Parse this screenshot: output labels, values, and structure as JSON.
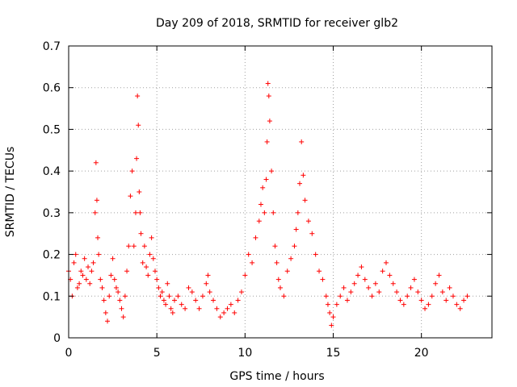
{
  "chart_data": {
    "type": "scatter",
    "title": "Day 209 of 2018, SRMTID for receiver glb2",
    "xlabel": "GPS time / hours",
    "ylabel": "SRMTID / TECUs",
    "xlim": [
      0,
      24
    ],
    "ylim": [
      0,
      0.7
    ],
    "xticks": [
      0,
      5,
      10,
      15,
      20
    ],
    "yticks": [
      0,
      0.1,
      0.2,
      0.3,
      0.4,
      0.5,
      0.6,
      0.7
    ],
    "ytick_labels": [
      "0",
      "0.1",
      "0.2",
      "0.3",
      "0.4",
      "0.5",
      "0.6",
      "0.7"
    ],
    "grid": true,
    "marker": "+",
    "color": "#ff0000",
    "series": [
      {
        "name": "SRMTID",
        "x": [
          0.0,
          0.1,
          0.2,
          0.3,
          0.4,
          0.5,
          0.6,
          0.7,
          0.8,
          0.9,
          1.0,
          1.1,
          1.2,
          1.3,
          1.4,
          1.5,
          1.55,
          1.6,
          1.65,
          1.7,
          1.8,
          1.9,
          2.0,
          2.1,
          2.2,
          2.3,
          2.4,
          2.5,
          2.6,
          2.7,
          2.8,
          2.9,
          3.0,
          3.1,
          3.2,
          3.3,
          3.4,
          3.5,
          3.6,
          3.7,
          3.8,
          3.85,
          3.9,
          3.95,
          4.0,
          4.05,
          4.1,
          4.2,
          4.3,
          4.4,
          4.5,
          4.6,
          4.7,
          4.8,
          4.9,
          5.0,
          5.1,
          5.2,
          5.3,
          5.4,
          5.5,
          5.6,
          5.7,
          5.8,
          5.9,
          6.0,
          6.2,
          6.4,
          6.6,
          6.8,
          7.0,
          7.2,
          7.4,
          7.6,
          7.8,
          7.9,
          8.0,
          8.2,
          8.4,
          8.6,
          8.8,
          9.0,
          9.2,
          9.4,
          9.6,
          9.8,
          10.0,
          10.2,
          10.4,
          10.6,
          10.8,
          10.9,
          11.0,
          11.1,
          11.2,
          11.25,
          11.3,
          11.35,
          11.4,
          11.5,
          11.6,
          11.7,
          11.8,
          11.9,
          12.0,
          12.2,
          12.4,
          12.6,
          12.8,
          12.9,
          13.0,
          13.1,
          13.2,
          13.3,
          13.4,
          13.6,
          13.8,
          14.0,
          14.2,
          14.4,
          14.6,
          14.7,
          14.8,
          14.9,
          15.0,
          15.2,
          15.4,
          15.6,
          15.8,
          16.0,
          16.2,
          16.4,
          16.6,
          16.8,
          17.0,
          17.2,
          17.4,
          17.6,
          17.8,
          18.0,
          18.2,
          18.4,
          18.6,
          18.8,
          19.0,
          19.2,
          19.4,
          19.6,
          19.8,
          20.0,
          20.2,
          20.4,
          20.6,
          20.8,
          21.0,
          21.2,
          21.4,
          21.6,
          21.8,
          22.0,
          22.2,
          22.4,
          22.6
        ],
        "y": [
          0.16,
          0.14,
          0.1,
          0.18,
          0.2,
          0.12,
          0.13,
          0.16,
          0.15,
          0.19,
          0.14,
          0.17,
          0.13,
          0.16,
          0.18,
          0.3,
          0.42,
          0.33,
          0.24,
          0.2,
          0.14,
          0.12,
          0.09,
          0.06,
          0.04,
          0.1,
          0.15,
          0.19,
          0.14,
          0.12,
          0.11,
          0.09,
          0.07,
          0.05,
          0.1,
          0.16,
          0.22,
          0.34,
          0.4,
          0.22,
          0.3,
          0.43,
          0.58,
          0.51,
          0.35,
          0.3,
          0.25,
          0.18,
          0.22,
          0.17,
          0.15,
          0.2,
          0.24,
          0.19,
          0.16,
          0.14,
          0.12,
          0.1,
          0.11,
          0.09,
          0.08,
          0.13,
          0.1,
          0.07,
          0.06,
          0.09,
          0.1,
          0.08,
          0.07,
          0.12,
          0.11,
          0.09,
          0.07,
          0.1,
          0.13,
          0.15,
          0.11,
          0.09,
          0.07,
          0.05,
          0.06,
          0.07,
          0.08,
          0.06,
          0.09,
          0.11,
          0.15,
          0.2,
          0.18,
          0.24,
          0.28,
          0.32,
          0.36,
          0.3,
          0.38,
          0.47,
          0.61,
          0.58,
          0.52,
          0.4,
          0.3,
          0.22,
          0.18,
          0.14,
          0.12,
          0.1,
          0.16,
          0.19,
          0.22,
          0.26,
          0.3,
          0.37,
          0.47,
          0.39,
          0.33,
          0.28,
          0.25,
          0.2,
          0.16,
          0.14,
          0.1,
          0.08,
          0.06,
          0.03,
          0.05,
          0.08,
          0.1,
          0.12,
          0.09,
          0.11,
          0.13,
          0.15,
          0.17,
          0.14,
          0.12,
          0.1,
          0.13,
          0.11,
          0.16,
          0.18,
          0.15,
          0.13,
          0.11,
          0.09,
          0.08,
          0.1,
          0.12,
          0.14,
          0.11,
          0.09,
          0.07,
          0.08,
          0.1,
          0.13,
          0.15,
          0.11,
          0.09,
          0.12,
          0.1,
          0.08,
          0.07,
          0.09,
          0.1
        ]
      }
    ]
  }
}
